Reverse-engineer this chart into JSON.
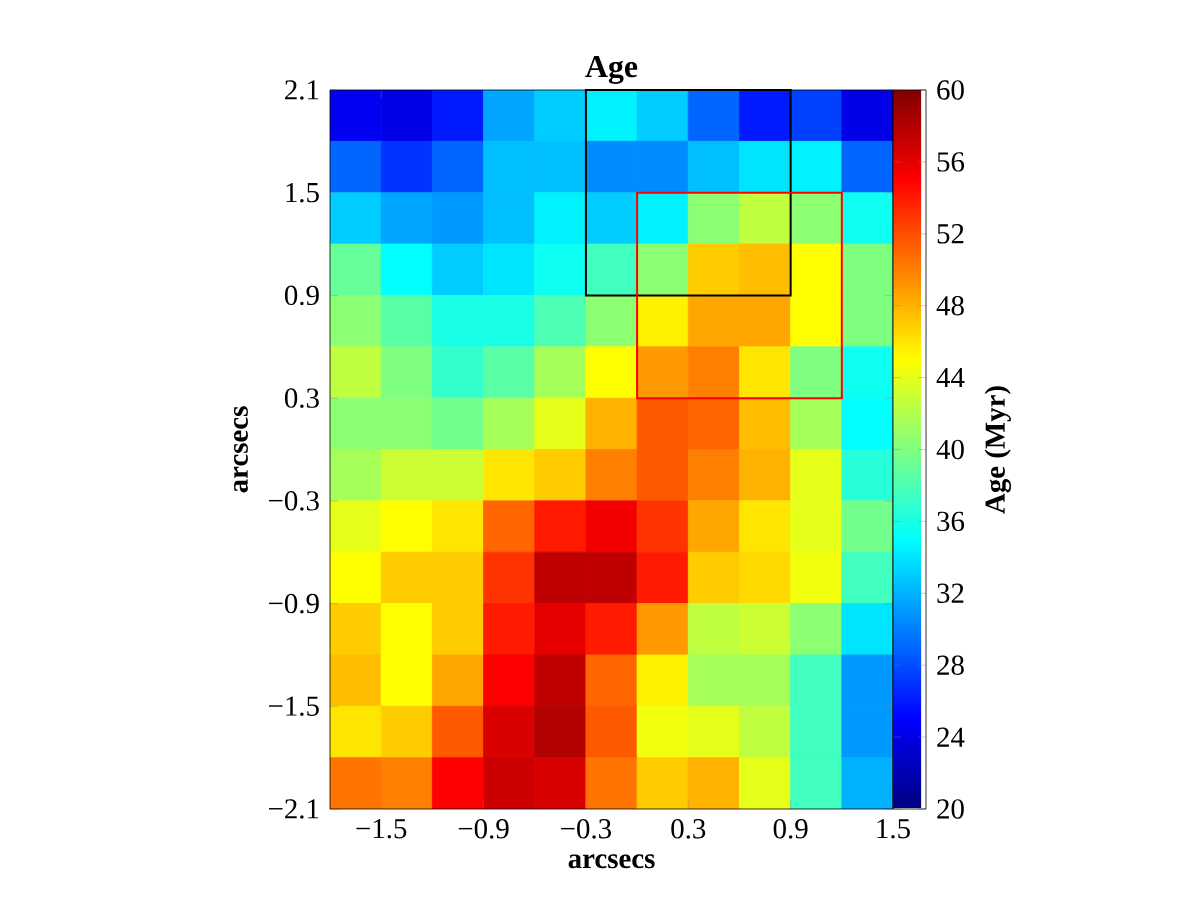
{
  "chart_data": {
    "type": "heatmap",
    "title": "Age",
    "xlabel": "arcsecs",
    "ylabel": "arcsecs",
    "clabel": "Age (Myr)",
    "xlim": [
      -1.8,
      1.5
    ],
    "xticks": [
      {
        "value": -1.5,
        "label": "−1.5"
      },
      {
        "value": -0.9,
        "label": "−0.9"
      },
      {
        "value": -0.3,
        "label": "−0.3"
      },
      0.3,
      0.9,
      1.5
    ],
    "ylim": [
      -2.1,
      2.1
    ],
    "yticks": [
      {
        "value": -2.1,
        "label": "−2.1"
      },
      {
        "value": -1.5,
        "label": "−1.5"
      },
      {
        "value": -0.9,
        "label": "−0.9"
      },
      {
        "value": -0.3,
        "label": "−0.3"
      },
      0.3,
      0.9,
      1.5,
      2.1
    ],
    "clim": [
      20,
      60
    ],
    "cticks": [
      20,
      24,
      28,
      32,
      36,
      40,
      44,
      48,
      52,
      56,
      60
    ],
    "cells": [
      [
        24.5,
        24,
        26,
        31.5,
        33,
        34.5,
        33,
        29,
        26,
        27.5,
        24
      ],
      [
        29,
        27,
        29,
        32.5,
        32.5,
        30.5,
        30.5,
        32.5,
        34,
        34.5,
        29
      ],
      [
        33,
        31.5,
        31,
        32.5,
        34.5,
        33,
        34.5,
        40.5,
        42.5,
        40.5,
        35.5
      ],
      [
        39,
        35,
        33,
        34,
        35.5,
        37.5,
        40.5,
        47,
        47.5,
        45,
        40
      ],
      [
        40.5,
        38.5,
        36,
        36,
        38,
        40.5,
        45.5,
        48.5,
        48.5,
        45,
        40
      ],
      [
        42.5,
        40,
        37,
        38.5,
        41.5,
        45,
        49,
        50,
        46,
        40,
        35.5
      ],
      [
        40.5,
        40.5,
        39.5,
        41.5,
        44,
        48,
        51.5,
        51,
        47.5,
        41.5,
        35
      ],
      [
        41.5,
        43,
        43,
        46,
        47,
        50,
        51.5,
        50,
        48,
        44,
        36.5
      ],
      [
        44,
        45,
        46,
        51,
        54,
        55.5,
        53,
        48.5,
        46,
        44,
        39.5
      ],
      [
        45,
        47,
        47,
        53,
        57.5,
        57.5,
        54,
        47,
        46.5,
        44.5,
        37.5
      ],
      [
        47,
        45,
        47,
        54,
        56,
        54,
        49,
        42.5,
        43,
        40.5,
        34
      ],
      [
        47.5,
        45,
        48.5,
        55,
        57.5,
        51,
        45.5,
        41.5,
        41.5,
        37.5,
        31
      ],
      [
        46,
        47,
        51.5,
        56.5,
        58,
        51.5,
        44.5,
        44,
        42.5,
        37.5,
        31
      ],
      [
        50.5,
        50,
        55,
        57,
        56.5,
        50.5,
        47,
        48,
        44,
        37.5,
        32
      ]
    ]
  }
}
